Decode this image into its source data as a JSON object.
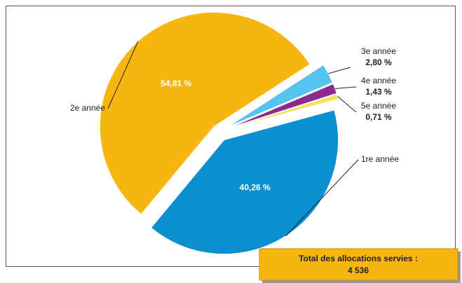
{
  "chart_data": {
    "type": "pie",
    "categories": [
      "1re année",
      "2e année",
      "3e année",
      "4e année",
      "5e année"
    ],
    "values": [
      40.26,
      54.81,
      2.8,
      1.43,
      0.71
    ],
    "value_labels": [
      "40,26 %",
      "54,81 %",
      "2,80 %",
      "1,43 %",
      "0,71 %"
    ],
    "colors": [
      "#0a8fd1",
      "#f6b50f",
      "#55c4ef",
      "#8c2b8e",
      "#f8e05a"
    ],
    "total": {
      "label": "Total des allocations servies :",
      "value": 4536,
      "value_label": "4 536"
    }
  }
}
